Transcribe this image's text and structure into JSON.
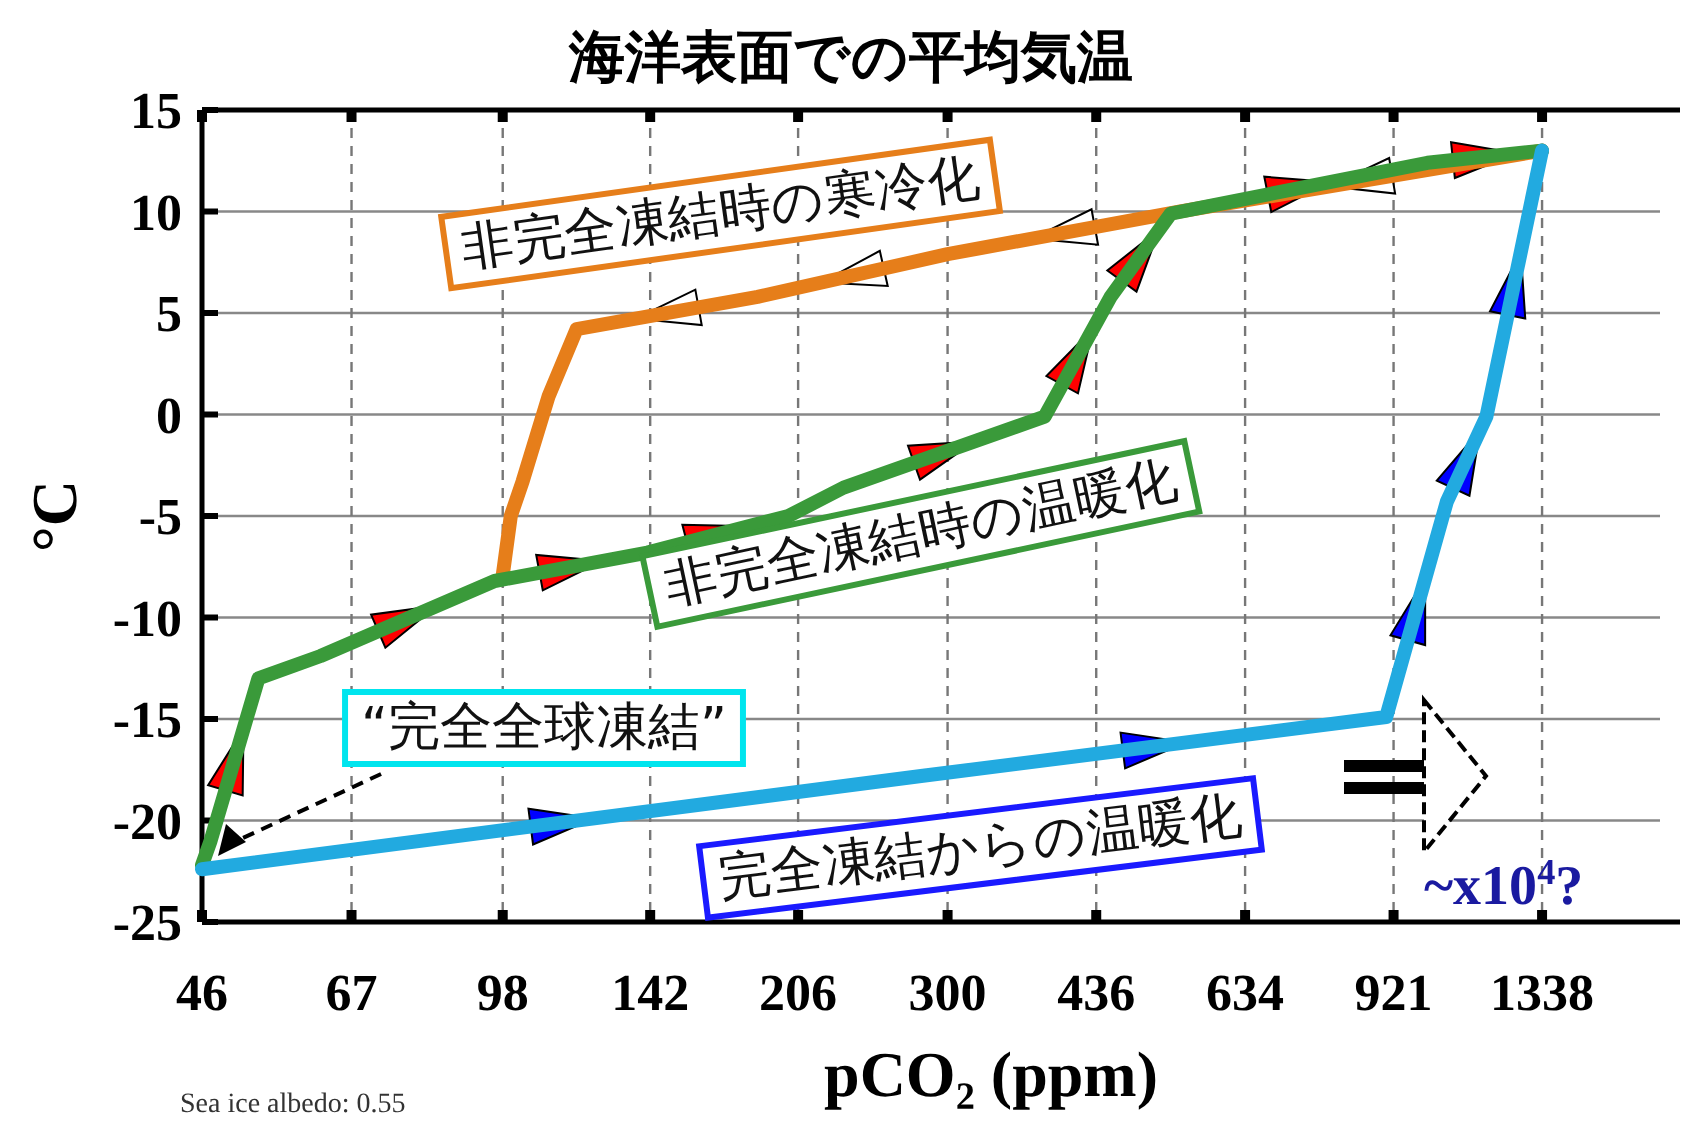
{
  "chart_data": {
    "type": "line",
    "title": "海洋表面での平均気温",
    "xlabel": "pCO₂ (ppm)",
    "ylabel": "°C",
    "log": "x",
    "xlim": [
      46,
      1800
    ],
    "xticks": [
      46,
      67,
      98,
      142,
      206,
      300,
      436,
      634,
      921,
      1338
    ],
    "ylim": [
      -25,
      15
    ],
    "yticks": [
      15,
      10,
      5,
      0,
      -5,
      -10,
      -15,
      -20,
      -25
    ],
    "grid": true,
    "line_style": "solid",
    "series": [
      {
        "name": "非完全凍結時の寒冷化",
        "color": "#e67e1a",
        "x": [
          1338,
          537,
          300,
          186,
          118,
          110,
          103,
          100,
          98
        ],
        "values": [
          13,
          10,
          7.9,
          5.8,
          4.2,
          0.9,
          -3.3,
          -5,
          -7.9
        ]
      },
      {
        "name": "非完全凍結時の温暖化",
        "color": "#3a9a3a",
        "x": [
          46,
          47,
          53,
          62,
          96,
          141,
          201,
          231,
          383,
          452,
          526,
          1003,
          1338
        ],
        "values": [
          -22.2,
          -21,
          -13,
          -11.9,
          -8.2,
          -6.8,
          -5,
          -3.6,
          -0.1,
          5.8,
          9.9,
          12.4,
          13
        ]
      },
      {
        "name": "完全凍結からの温暖化",
        "color": "#22aae0",
        "x": [
          46,
          282,
          904,
          1053,
          1163,
          1338
        ],
        "values": [
          -22.4,
          -17.8,
          -14.9,
          -4.3,
          -0.1,
          13
        ]
      }
    ],
    "annotations": [
      "“完全全球凍結”",
      "~x10$^{4}$?",
      "Sea ice albedo: 0.55"
    ]
  }
}
